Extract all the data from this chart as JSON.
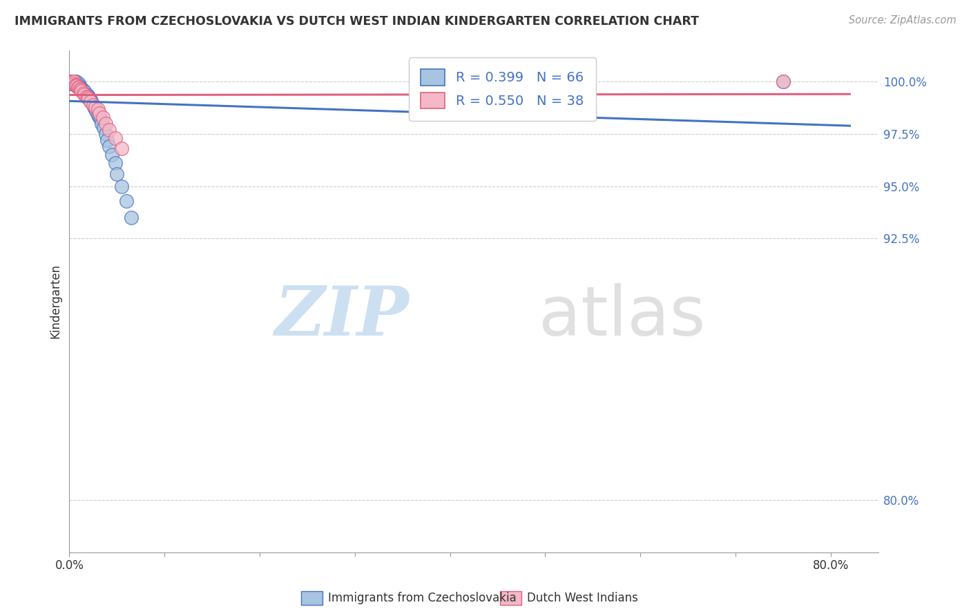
{
  "title": "IMMIGRANTS FROM CZECHOSLOVAKIA VS DUTCH WEST INDIAN KINDERGARTEN CORRELATION CHART",
  "source": "Source: ZipAtlas.com",
  "ylabel_ticks": [
    "100.0%",
    "97.5%",
    "95.0%",
    "92.5%",
    "80.0%"
  ],
  "ylabel_tick_vals": [
    1.0,
    0.975,
    0.95,
    0.925,
    0.8
  ],
  "xlim": [
    0.0,
    0.85
  ],
  "ylim": [
    0.775,
    1.015
  ],
  "ylabel": "Kindergarten",
  "legend1_r": "0.399",
  "legend1_n": "66",
  "legend2_r": "0.550",
  "legend2_n": "38",
  "blue_color": "#a8c4e0",
  "pink_color": "#f4b8c8",
  "blue_line_color": "#4472c4",
  "pink_line_color": "#e06080",
  "blue_x": [
    0.0,
    0.0,
    0.0,
    0.001,
    0.001,
    0.001,
    0.001,
    0.001,
    0.001,
    0.002,
    0.002,
    0.002,
    0.002,
    0.003,
    0.003,
    0.003,
    0.003,
    0.004,
    0.004,
    0.004,
    0.005,
    0.005,
    0.006,
    0.006,
    0.007,
    0.007,
    0.008,
    0.008,
    0.009,
    0.01,
    0.01,
    0.011,
    0.012,
    0.013,
    0.014,
    0.015,
    0.016,
    0.017,
    0.018,
    0.019,
    0.02,
    0.02,
    0.021,
    0.022,
    0.022,
    0.023,
    0.024,
    0.025,
    0.026,
    0.027,
    0.028,
    0.03,
    0.032,
    0.033,
    0.034,
    0.036,
    0.038,
    0.04,
    0.042,
    0.045,
    0.048,
    0.05,
    0.055,
    0.06,
    0.065,
    0.75
  ],
  "blue_y": [
    1.0,
    1.0,
    1.0,
    1.0,
    1.0,
    1.0,
    1.0,
    1.0,
    1.0,
    1.0,
    1.0,
    0.999,
    0.999,
    1.0,
    1.0,
    0.999,
    0.999,
    1.0,
    0.999,
    0.999,
    1.0,
    0.999,
    1.0,
    0.999,
    1.0,
    0.998,
    0.999,
    0.998,
    0.998,
    0.999,
    0.998,
    0.997,
    0.997,
    0.9965,
    0.996,
    0.9955,
    0.9955,
    0.994,
    0.994,
    0.9935,
    0.993,
    0.9925,
    0.992,
    0.9915,
    0.991,
    0.9905,
    0.99,
    0.989,
    0.988,
    0.987,
    0.986,
    0.984,
    0.983,
    0.982,
    0.98,
    0.978,
    0.975,
    0.972,
    0.969,
    0.965,
    0.961,
    0.956,
    0.95,
    0.943,
    0.935,
    1.0
  ],
  "pink_x": [
    0.0,
    0.0,
    0.0,
    0.001,
    0.001,
    0.001,
    0.002,
    0.002,
    0.003,
    0.003,
    0.004,
    0.004,
    0.005,
    0.005,
    0.006,
    0.007,
    0.008,
    0.009,
    0.01,
    0.011,
    0.012,
    0.013,
    0.015,
    0.016,
    0.018,
    0.019,
    0.02,
    0.022,
    0.025,
    0.027,
    0.03,
    0.032,
    0.035,
    0.038,
    0.042,
    0.048,
    0.055,
    0.75
  ],
  "pink_y": [
    1.0,
    1.0,
    1.0,
    1.0,
    1.0,
    1.0,
    1.0,
    1.0,
    1.0,
    0.999,
    1.0,
    0.999,
    1.0,
    0.999,
    0.9985,
    0.998,
    0.998,
    0.9975,
    0.997,
    0.9965,
    0.996,
    0.9955,
    0.9945,
    0.994,
    0.993,
    0.9925,
    0.992,
    0.9905,
    0.989,
    0.988,
    0.987,
    0.985,
    0.983,
    0.98,
    0.977,
    0.973,
    0.968,
    1.0
  ]
}
